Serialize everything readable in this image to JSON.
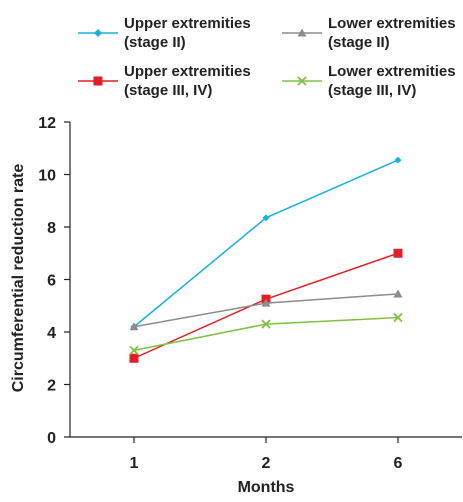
{
  "chart_data": {
    "type": "line",
    "xlabel": "Months",
    "ylabel": "Circumferential reduction rate",
    "categories": [
      "1",
      "2",
      "6"
    ],
    "ylim": [
      0,
      12
    ],
    "yticks": [
      "0",
      "2",
      "4",
      "6",
      "8",
      "10",
      "12"
    ],
    "grid": false,
    "legend_position": "top",
    "series": [
      {
        "name": "Upper extremities\n(stage II)",
        "values": [
          4.2,
          8.35,
          10.55
        ],
        "color": "#1ab0e0",
        "marker": "diamond"
      },
      {
        "name": "Upper extremities\n(stage III, IV)",
        "values": [
          3.0,
          5.25,
          7.0
        ],
        "color": "#e31e26",
        "marker": "square"
      },
      {
        "name": "Lower extremities\n(stage II)",
        "values": [
          4.2,
          5.1,
          5.45
        ],
        "color": "#8c8c8c",
        "marker": "triangle"
      },
      {
        "name": "Lower extremities\n(stage III, IV)",
        "values": [
          3.3,
          4.3,
          4.55
        ],
        "color": "#7dc242",
        "marker": "x"
      }
    ]
  }
}
